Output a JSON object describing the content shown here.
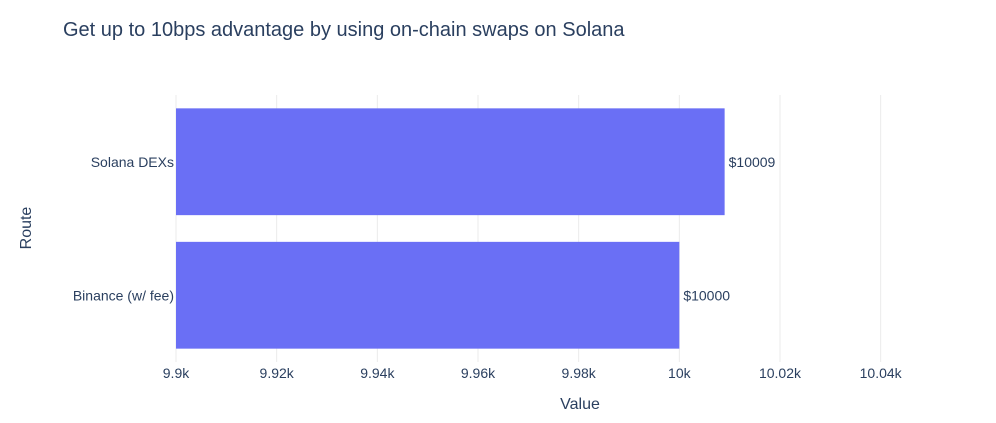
{
  "chart_data": {
    "type": "bar",
    "orientation": "horizontal",
    "title": "Get up to 10bps advantage by using on-chain swaps on Solana",
    "xlabel": "Value",
    "ylabel": "Route",
    "categories": [
      "Solana DEXs",
      "Binance (w/ fee)"
    ],
    "values": [
      10009,
      10000
    ],
    "data_labels": [
      "$10009",
      "$10000"
    ],
    "xlim": [
      9900,
      10050
    ],
    "xticks": [
      9900,
      9920,
      9940,
      9960,
      9980,
      10000,
      10020,
      10040
    ],
    "xtick_labels": [
      "9.9k",
      "9.92k",
      "9.94k",
      "9.96k",
      "9.98k",
      "10k",
      "10.02k",
      "10.04k"
    ],
    "grid": true,
    "bar_color": "#6a6ff5"
  }
}
